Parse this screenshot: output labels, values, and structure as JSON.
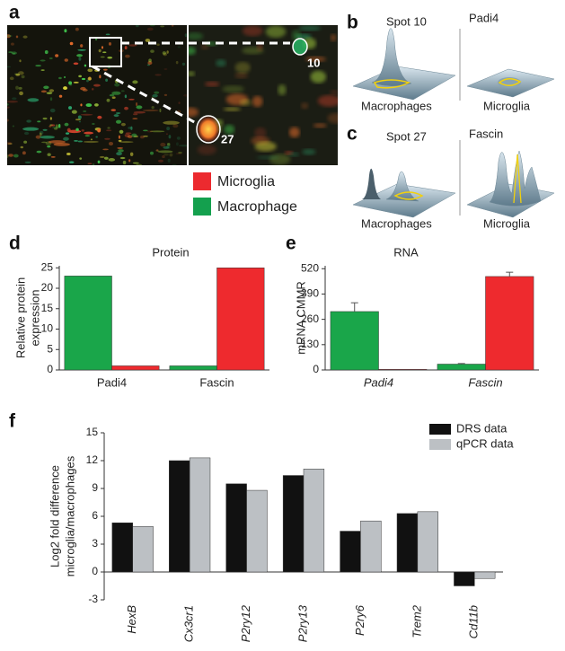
{
  "panel_labels": [
    "a",
    "b",
    "c",
    "d",
    "e",
    "f"
  ],
  "gel": {
    "spots": [
      "10",
      "27"
    ],
    "legend": [
      {
        "label": "Microglia",
        "color": "#ec2a2f"
      },
      {
        "label": "Macrophage",
        "color": "#14a04e"
      }
    ]
  },
  "surfaces": [
    {
      "spot": "Spot 10",
      "protein": "Padi4",
      "left": "Macrophages",
      "right": "Microglia"
    },
    {
      "spot": "Spot 27",
      "protein": "Fascin",
      "left": "Macrophages",
      "right": "Microglia"
    }
  ],
  "chart_data": [
    {
      "type": "bar",
      "title": "Protein",
      "ylabel": [
        "Relative protein",
        "expression"
      ],
      "categories": [
        "Padi4",
        "Fascin"
      ],
      "series": [
        {
          "color": "#1aa64a",
          "values": [
            23,
            1
          ]
        },
        {
          "color": "#ee2a2e",
          "values": [
            1,
            25
          ]
        }
      ],
      "ylim": [
        0,
        25.5
      ],
      "yticks": [
        0,
        5,
        10,
        15,
        20,
        25
      ]
    },
    {
      "type": "bar",
      "title": "RNA",
      "ylabel": [
        "mRNA CMMR"
      ],
      "categories": [
        "Padi4",
        "Fascin"
      ],
      "category_style": "italic",
      "series": [
        {
          "color": "#1aa64a",
          "values": [
            300,
            30
          ],
          "errors": [
            45,
            3
          ]
        },
        {
          "color": "#ee2a2e",
          "values": [
            3,
            480
          ],
          "errors": [
            null,
            22
          ]
        }
      ],
      "ylim": [
        0,
        535
      ],
      "yticks": [
        0,
        130,
        260,
        390,
        520
      ]
    },
    {
      "type": "bar",
      "ylabel": [
        "Log2 fold difference",
        "microglia/macrophages"
      ],
      "categories": [
        "HexB",
        "Cx3cr1",
        "P2ry12",
        "P2ry13",
        "P2ry6",
        "Trem2",
        "Cd11b"
      ],
      "category_style": "italic",
      "category_rotation": -90,
      "series": [
        {
          "name": "DRS data",
          "color": "#111111",
          "values": [
            5.3,
            12,
            9.5,
            10.4,
            4.4,
            6.3,
            -1.5
          ]
        },
        {
          "name": "qPCR data",
          "color": "#bcc0c4",
          "values": [
            4.9,
            12.3,
            8.8,
            11.1,
            5.5,
            6.5,
            -0.7
          ]
        }
      ],
      "ylim": [
        -3,
        15
      ],
      "yticks": [
        -3,
        0,
        3,
        6,
        9,
        12,
        15
      ],
      "legend": "upper right"
    }
  ]
}
